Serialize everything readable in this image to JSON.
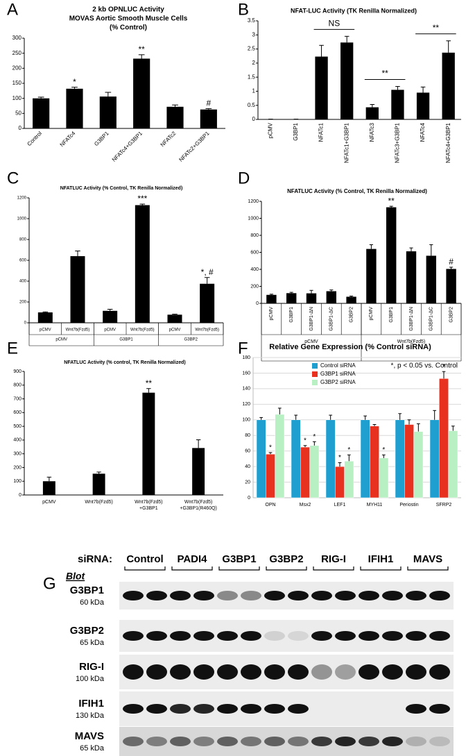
{
  "chart_data": [
    {
      "panel": "A",
      "type": "bar",
      "title": [
        "2 kb OPNLUC Activity",
        "MOVAS Aortic Smooth Muscle Cells",
        "(% Control)"
      ],
      "categories": [
        "Control",
        "NFATc4",
        "G3BP1",
        "NFATc4+G3BP1",
        "NFATc2",
        "NFATc2+G3BP1"
      ],
      "values": [
        100,
        132,
        106,
        232,
        72,
        63
      ],
      "errors": [
        4,
        5,
        14,
        13,
        6,
        3
      ],
      "annotations": [
        null,
        "*",
        null,
        "**",
        null,
        "#"
      ],
      "color": "#000000",
      "ylim": [
        0,
        300
      ],
      "yticks": [
        0,
        50,
        100,
        150,
        200,
        250,
        300
      ]
    },
    {
      "panel": "B",
      "type": "bar",
      "title": [
        "NFAT-LUC Activity (TK Renilla Normalized)"
      ],
      "categories": [
        "pCMV",
        "G3BP1",
        "NFATc1",
        "NFATc1+G3BP1",
        "NFATc3",
        "NFATc3+G3BP1",
        "NFATc4",
        "NFATc4+G3BP1"
      ],
      "values": [
        0.01,
        0.01,
        2.23,
        2.73,
        0.43,
        1.05,
        0.95,
        2.37
      ],
      "errors": [
        0,
        0,
        0.4,
        0.22,
        0.1,
        0.12,
        0.2,
        0.42
      ],
      "brackets": [
        {
          "label": "NS",
          "categories": [
            "NFATc1",
            "NFATc1+G3BP1"
          ]
        },
        {
          "label": "**",
          "categories": [
            "NFATc3",
            "NFATc3+G3BP1"
          ]
        },
        {
          "label": "**",
          "categories": [
            "NFATc4",
            "NFATc4+G3BP1"
          ]
        }
      ],
      "color": "#000000",
      "ylim": [
        0,
        3.5
      ],
      "yticks": [
        0,
        0.5,
        1,
        1.5,
        2,
        2.5,
        3,
        3.5
      ]
    },
    {
      "panel": "C",
      "type": "bar",
      "title": [
        "NFATLUC Activity (% Control, TK Renilla Normalized)"
      ],
      "categories": [
        "pCMV",
        "Wnt7b(Fzd5)",
        "pCMV",
        "Wnt7b(Fzd5)",
        "pCMV",
        "Wnt7b(Fzd5)"
      ],
      "groups": [
        "pCMV",
        "G3BP1",
        "G3BP2"
      ],
      "values": [
        100,
        640,
        115,
        1130,
        78,
        375
      ],
      "errors": [
        5,
        50,
        15,
        10,
        5,
        60
      ],
      "annotations": [
        null,
        null,
        null,
        "***",
        null,
        "*, #"
      ],
      "color": "#000000",
      "ylim": [
        0,
        1200
      ],
      "yticks": [
        0,
        200,
        400,
        600,
        800,
        1000,
        1200
      ]
    },
    {
      "panel": "D",
      "type": "bar",
      "title": [
        "NFATLUC Activity (% Control, TK Renilla Normalized)"
      ],
      "categories": [
        "pCMV",
        "G3BP1",
        "G3BP1-ΔN",
        "G3BP1-ΔC",
        "G3BP2",
        "pCMV",
        "G3BP1",
        "G3BP1-ΔN",
        "G3BP1-ΔC",
        "G3BP2"
      ],
      "groups": [
        "pCMV",
        "Wnt7b(Fzd5)"
      ],
      "values": [
        100,
        120,
        118,
        143,
        78,
        640,
        1130,
        612,
        560,
        405
      ],
      "errors": [
        8,
        10,
        35,
        15,
        8,
        50,
        12,
        40,
        130,
        20
      ],
      "annotations": [
        null,
        null,
        null,
        null,
        null,
        null,
        "**",
        null,
        null,
        "#"
      ],
      "color": "#000000",
      "ylim": [
        0,
        1200
      ],
      "yticks": [
        0,
        200,
        400,
        600,
        800,
        1000,
        1200
      ]
    },
    {
      "panel": "E",
      "type": "bar",
      "title": [
        "NFATLUC Activity (% control, TK Renilla Normalized)"
      ],
      "categories": [
        "pCMV",
        "Wnt7b(Fzd5)",
        "Wnt7b(Fzd5)\n+G3BP1",
        "Wnt7b(Fzd5)\n+G3BP1(R460Q)"
      ],
      "values": [
        100,
        155,
        745,
        342
      ],
      "errors": [
        30,
        12,
        30,
        60
      ],
      "annotations": [
        null,
        null,
        "**",
        null
      ],
      "color": "#000000",
      "ylim": [
        0,
        900
      ],
      "yticks": [
        0,
        100,
        200,
        300,
        400,
        500,
        600,
        700,
        800,
        900
      ]
    },
    {
      "panel": "F",
      "type": "bar",
      "title": [
        "Relative Gene Expression (% Control siRNA)"
      ],
      "note": "*, p < 0.05 vs. Control",
      "categories": [
        "OPN",
        "Msx2",
        "LEF1",
        "MYH11",
        "Periostin",
        "SFRP2"
      ],
      "series": [
        {
          "name": "Control siRNA",
          "color": "#1f9fd0",
          "values": [
            100,
            100,
            100,
            100,
            100,
            100
          ],
          "errors": [
            3,
            6,
            6,
            5,
            8,
            12
          ],
          "annotations": [
            null,
            null,
            null,
            null,
            null,
            null
          ]
        },
        {
          "name": "G3BP1 siRNA",
          "color": "#e8311e",
          "values": [
            56,
            65,
            40,
            92,
            94,
            153
          ],
          "errors": [
            2,
            2,
            5,
            2,
            6,
            9
          ],
          "annotations": [
            "*",
            "*",
            "*",
            null,
            null,
            "*"
          ]
        },
        {
          "name": "G3BP2 siRNA",
          "color": "#b8f0c4",
          "values": [
            107,
            67,
            47,
            51,
            85,
            86
          ],
          "errors": [
            8,
            5,
            8,
            4,
            10,
            6
          ],
          "annotations": [
            null,
            "*",
            "*",
            "*",
            null,
            null
          ]
        }
      ],
      "legend": "upper center",
      "grid": true,
      "ylim": [
        0,
        180
      ],
      "yticks": [
        0,
        20,
        40,
        60,
        80,
        100,
        120,
        140,
        160,
        180
      ]
    }
  ],
  "blot": {
    "panel": "G",
    "header": "siRNA:",
    "label": "Blot",
    "lanes": [
      "Control",
      "PADI4",
      "G3BP1",
      "G3BP2",
      "RIG-I",
      "IFIH1",
      "MAVS"
    ],
    "rows": [
      {
        "protein": "G3BP1",
        "size": "60 kDa"
      },
      {
        "protein": "G3BP2",
        "size": "65 kDa"
      },
      {
        "protein": "RIG-I",
        "size": "100 kDa"
      },
      {
        "protein": "IFIH1",
        "size": "130 kDa"
      },
      {
        "protein": "MAVS",
        "size": "65 kDa"
      }
    ]
  }
}
